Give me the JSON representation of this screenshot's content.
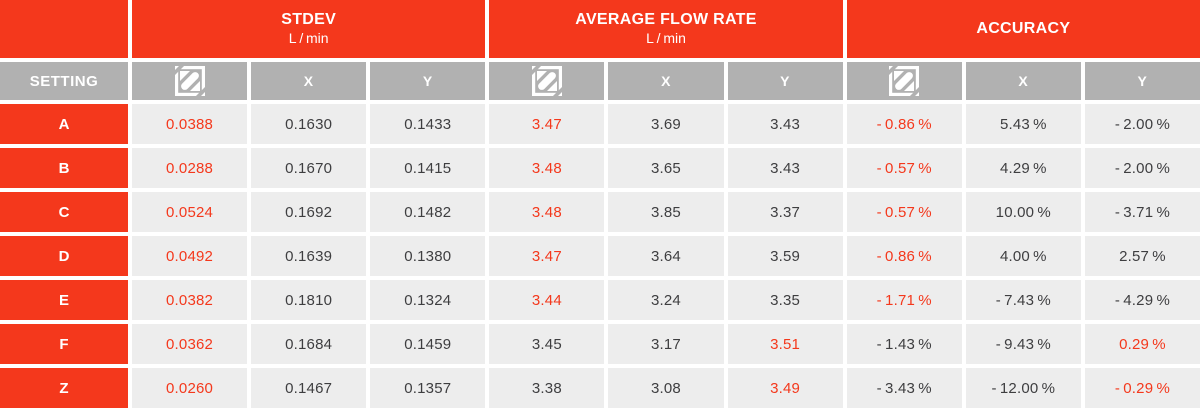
{
  "colors": {
    "accent_red": "#f4381c",
    "header_gray": "#b1b1b1",
    "cell_gray": "#ededed",
    "text_dark": "#3e3e40",
    "white": "#ffffff"
  },
  "header": {
    "setting_label": "SETTING",
    "col_x": "X",
    "col_y": "Y",
    "icon": "brand-logo-icon",
    "groups": [
      {
        "title": "STDEV",
        "subtitle": "L / min"
      },
      {
        "title": "AVERAGE FLOW RATE",
        "subtitle": "L / min"
      },
      {
        "title": "ACCURACY",
        "subtitle": ""
      }
    ]
  },
  "rows": [
    {
      "setting": "A",
      "values": [
        "0.0388",
        "0.1630",
        "0.1433",
        "3.47",
        "3.69",
        "3.43",
        "- 0.86 %",
        "5.43 %",
        "- 2.00 %"
      ],
      "red": [
        0,
        3,
        6
      ]
    },
    {
      "setting": "B",
      "values": [
        "0.0288",
        "0.1670",
        "0.1415",
        "3.48",
        "3.65",
        "3.43",
        "- 0.57 %",
        "4.29 %",
        "- 2.00 %"
      ],
      "red": [
        0,
        3,
        6
      ]
    },
    {
      "setting": "C",
      "values": [
        "0.0524",
        "0.1692",
        "0.1482",
        "3.48",
        "3.85",
        "3.37",
        "- 0.57 %",
        "10.00 %",
        "- 3.71 %"
      ],
      "red": [
        0,
        3,
        6
      ]
    },
    {
      "setting": "D",
      "values": [
        "0.0492",
        "0.1639",
        "0.1380",
        "3.47",
        "3.64",
        "3.59",
        "- 0.86 %",
        "4.00 %",
        "2.57 %"
      ],
      "red": [
        0,
        3,
        6
      ]
    },
    {
      "setting": "E",
      "values": [
        "0.0382",
        "0.1810",
        "0.1324",
        "3.44",
        "3.24",
        "3.35",
        "- 1.71 %",
        "- 7.43 %",
        "- 4.29 %"
      ],
      "red": [
        0,
        3,
        6
      ]
    },
    {
      "setting": "F",
      "values": [
        "0.0362",
        "0.1684",
        "0.1459",
        "3.45",
        "3.17",
        "3.51",
        "- 1.43 %",
        "- 9.43 %",
        "0.29 %"
      ],
      "red": [
        0,
        5,
        8
      ]
    },
    {
      "setting": "Z",
      "values": [
        "0.0260",
        "0.1467",
        "0.1357",
        "3.38",
        "3.08",
        "3.49",
        "- 3.43 %",
        "- 12.00 %",
        "- 0.29 %"
      ],
      "red": [
        0,
        5,
        8
      ]
    }
  ]
}
